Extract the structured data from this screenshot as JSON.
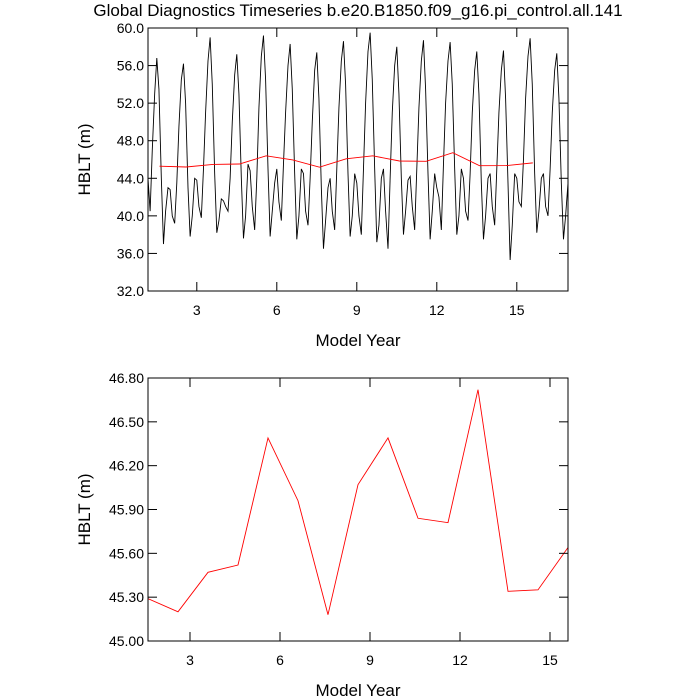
{
  "chart_data": [
    {
      "type": "line",
      "title": "Global Diagnostics Timeseries b.e20.B1850.f09_g16.pi_control.all.141",
      "xlabel": "Model Year",
      "ylabel": "HBLT (m)",
      "xlim": [
        1.17,
        16.92
      ],
      "ylim": [
        32,
        60
      ],
      "xticks": [
        3,
        6,
        9,
        12,
        15
      ],
      "yticks": [
        {
          "value": 32,
          "label": "32.0"
        },
        {
          "value": 36,
          "label": "36.0"
        },
        {
          "value": 40,
          "label": "40.0"
        },
        {
          "value": 44,
          "label": "44.0"
        },
        {
          "value": 48,
          "label": "48.0"
        },
        {
          "value": 52,
          "label": "52.0"
        },
        {
          "value": 56,
          "label": "56.0"
        },
        {
          "value": 60,
          "label": "60.0"
        }
      ],
      "series": [
        {
          "color": "#000000",
          "x": [
            1.17,
            1.25,
            1.33,
            1.42,
            1.5,
            1.58,
            1.67,
            1.75,
            1.83,
            1.92,
            2.0,
            2.08,
            2.17,
            2.25,
            2.33,
            2.42,
            2.5,
            2.58,
            2.67,
            2.75,
            2.83,
            2.92,
            3.0,
            3.08,
            3.17,
            3.25,
            3.33,
            3.42,
            3.5,
            3.58,
            3.67,
            3.75,
            3.83,
            3.92,
            4.0,
            4.08,
            4.17,
            4.25,
            4.33,
            4.42,
            4.5,
            4.58,
            4.67,
            4.75,
            4.83,
            4.92,
            5.0,
            5.08,
            5.17,
            5.25,
            5.33,
            5.42,
            5.5,
            5.58,
            5.67,
            5.75,
            5.83,
            5.92,
            6.0,
            6.08,
            6.17,
            6.25,
            6.33,
            6.42,
            6.5,
            6.58,
            6.67,
            6.75,
            6.83,
            6.92,
            7.0,
            7.08,
            7.17,
            7.25,
            7.33,
            7.42,
            7.5,
            7.58,
            7.67,
            7.75,
            7.83,
            7.92,
            8.0,
            8.08,
            8.17,
            8.25,
            8.33,
            8.42,
            8.5,
            8.58,
            8.67,
            8.75,
            8.83,
            8.92,
            9.0,
            9.08,
            9.17,
            9.25,
            9.33,
            9.42,
            9.5,
            9.58,
            9.67,
            9.75,
            9.83,
            9.92,
            10.0,
            10.08,
            10.17,
            10.25,
            10.33,
            10.42,
            10.5,
            10.58,
            10.67,
            10.75,
            10.83,
            10.92,
            11.0,
            11.08,
            11.17,
            11.25,
            11.33,
            11.42,
            11.5,
            11.58,
            11.67,
            11.75,
            11.83,
            11.92,
            12.0,
            12.08,
            12.17,
            12.25,
            12.33,
            12.42,
            12.5,
            12.58,
            12.67,
            12.75,
            12.83,
            12.92,
            13.0,
            13.08,
            13.17,
            13.25,
            13.33,
            13.42,
            13.5,
            13.58,
            13.67,
            13.75,
            13.83,
            13.92,
            14.0,
            14.08,
            14.17,
            14.25,
            14.33,
            14.42,
            14.5,
            14.58,
            14.67,
            14.75,
            14.83,
            14.92,
            15.0,
            15.08,
            15.17,
            15.25,
            15.33,
            15.42,
            15.5,
            15.58,
            15.67,
            15.75,
            15.83,
            15.92,
            16.0,
            16.08,
            16.17,
            16.25,
            16.33,
            16.42,
            16.5,
            16.58,
            16.67,
            16.75,
            16.83,
            16.92
          ],
          "values": [
            44.0,
            40.5,
            47.0,
            53.0,
            56.8,
            53.5,
            44.0,
            37.0,
            40.5,
            43.0,
            42.8,
            40.0,
            39.2,
            43.5,
            49.5,
            54.5,
            56.2,
            52.0,
            43.0,
            37.8,
            40.0,
            44.0,
            43.8,
            41.0,
            39.8,
            45.0,
            51.0,
            56.5,
            59.0,
            54.0,
            44.5,
            38.2,
            39.5,
            41.8,
            41.6,
            41.0,
            40.5,
            44.0,
            50.0,
            55.0,
            57.2,
            53.0,
            44.0,
            37.6,
            40.0,
            45.5,
            44.8,
            41.0,
            38.5,
            44.0,
            51.5,
            57.0,
            59.2,
            54.5,
            45.0,
            37.8,
            40.5,
            43.5,
            45.0,
            41.5,
            39.5,
            45.5,
            51.0,
            56.0,
            58.3,
            53.5,
            44.5,
            37.5,
            40.0,
            45.0,
            44.5,
            40.5,
            39.0,
            44.0,
            50.0,
            55.5,
            57.4,
            52.5,
            43.0,
            36.5,
            39.5,
            43.0,
            44.0,
            40.5,
            38.5,
            45.0,
            51.5,
            56.5,
            58.6,
            54.0,
            44.5,
            37.8,
            40.0,
            44.5,
            43.5,
            40.0,
            38.0,
            45.0,
            52.0,
            57.5,
            59.5,
            54.5,
            45.0,
            37.2,
            39.0,
            44.0,
            45.0,
            40.5,
            36.5,
            44.0,
            51.0,
            56.0,
            58.0,
            53.0,
            44.0,
            38.0,
            40.5,
            43.8,
            44.2,
            41.0,
            38.5,
            45.0,
            51.5,
            56.5,
            58.7,
            53.5,
            44.5,
            37.5,
            40.5,
            44.5,
            43.0,
            42.0,
            38.5,
            45.5,
            52.0,
            56.5,
            58.5,
            54.0,
            45.0,
            38.0,
            40.0,
            45.0,
            44.0,
            40.5,
            39.5,
            44.5,
            51.0,
            55.5,
            57.5,
            53.0,
            43.5,
            37.5,
            40.0,
            44.0,
            44.5,
            41.0,
            39.0,
            45.0,
            51.0,
            55.5,
            57.6,
            52.5,
            43.5,
            35.3,
            39.0,
            44.5,
            44.0,
            41.5,
            41.0,
            46.0,
            52.5,
            57.0,
            58.9,
            54.0,
            44.5,
            38.2,
            40.5,
            44.0,
            44.5,
            41.0,
            40.0,
            45.0,
            51.0,
            55.5,
            57.3,
            52.5,
            43.5,
            37.5,
            40.0,
            43.5
          ]
        },
        {
          "color": "#ff0000",
          "x": [
            1.6,
            2.6,
            3.6,
            4.6,
            5.6,
            6.6,
            7.6,
            8.6,
            9.6,
            10.6,
            11.6,
            12.6,
            13.6,
            14.6,
            15.6
          ],
          "values": [
            45.29,
            45.2,
            45.47,
            45.52,
            46.39,
            45.96,
            45.18,
            46.07,
            46.39,
            45.84,
            45.81,
            46.72,
            45.34,
            45.35,
            45.64
          ]
        }
      ]
    },
    {
      "type": "line",
      "xlabel": "Model Year",
      "ylabel": "HBLT (m)",
      "xlim": [
        1.6,
        15.6
      ],
      "ylim": [
        45.0,
        46.8
      ],
      "xticks": [
        3,
        6,
        9,
        12,
        15
      ],
      "yticks": [
        {
          "value": 45.0,
          "label": "45.00"
        },
        {
          "value": 45.3,
          "label": "45.30"
        },
        {
          "value": 45.6,
          "label": "45.60"
        },
        {
          "value": 45.9,
          "label": "45.90"
        },
        {
          "value": 46.2,
          "label": "46.20"
        },
        {
          "value": 46.5,
          "label": "46.50"
        },
        {
          "value": 46.8,
          "label": "46.80"
        }
      ],
      "series": [
        {
          "color": "#ff0000",
          "x": [
            1.6,
            2.6,
            3.6,
            4.6,
            5.6,
            6.6,
            7.6,
            8.6,
            9.6,
            10.6,
            11.6,
            12.6,
            13.6,
            14.6,
            15.6
          ],
          "values": [
            45.29,
            45.2,
            45.47,
            45.52,
            46.39,
            45.96,
            45.18,
            46.07,
            46.39,
            45.84,
            45.81,
            46.72,
            45.34,
            45.35,
            45.64
          ]
        }
      ]
    }
  ]
}
